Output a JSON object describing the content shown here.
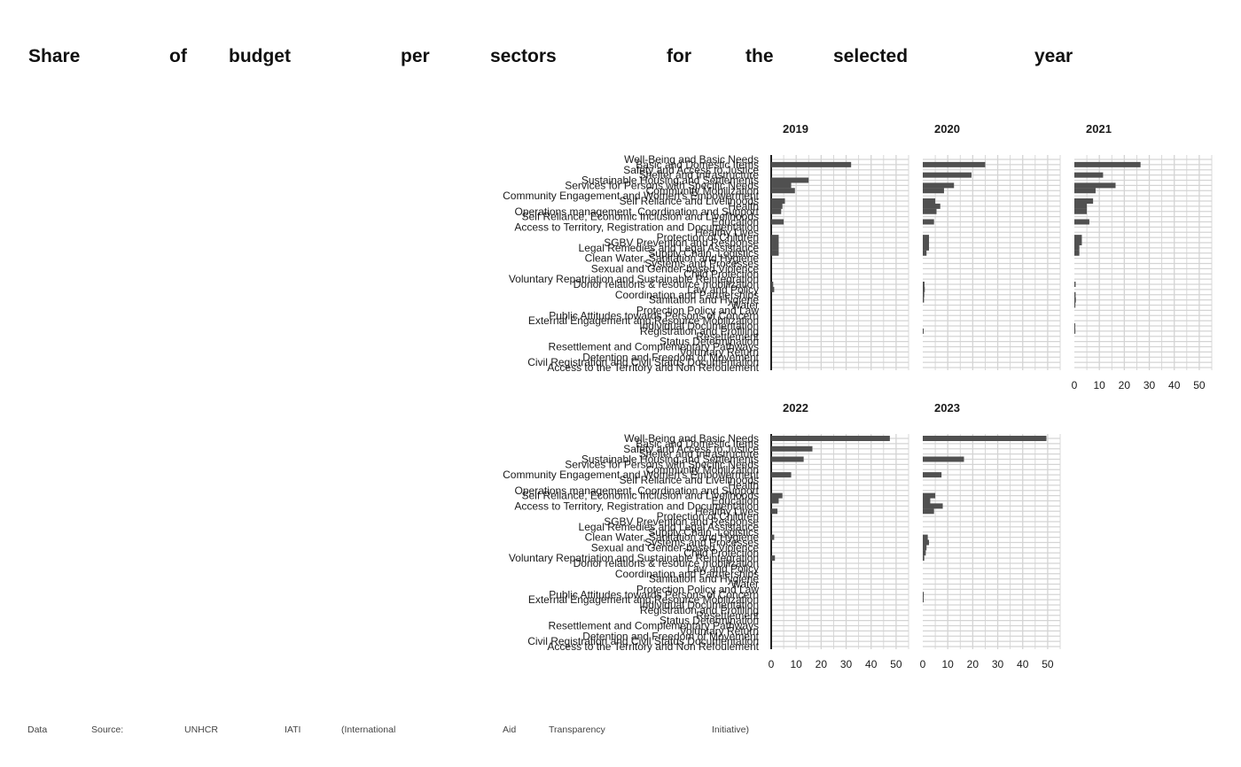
{
  "title": "Share of budget per sectors for the selected year",
  "source": "Data Source: UNHCR IATI (International Aid Transparency Initiative)",
  "colors": {
    "bar": "#505050",
    "grid": "#d4d4d4",
    "axis": "#222222",
    "text": "#1a1a1a"
  },
  "chart_data": {
    "type": "bar",
    "orientation": "horizontal",
    "layout": "facet-wrap",
    "categories": [
      "Well-Being and Basic Needs",
      "Basic and Domestic Items",
      "Safety and Access to Justice",
      "Shelter and Infrastructure",
      "Sustainable Housing and Settlements",
      "Services for Persons with Specific Needs",
      "Community Mobilization",
      "Community Engagement and Women's Empowerment",
      "Self Reliance and Livelihoods",
      "Health",
      "Operations management, Coordination and Support",
      "Self Reliance, Economic Inclusion and Livelihoods",
      "Education",
      "Access to Territory, Registration and Documentation",
      "Healthy Lives",
      "Protection of Children",
      "SGBV Prevention and Response",
      "Legal Remedies and Legal Assistance",
      "Supply Chain, Logistics",
      "Clean Water, Sanitation and Hygiene",
      "Systems and Processes",
      "Sexual and Gender-based Violence",
      "Child Protection",
      "Voluntary Repatriation and Sustainable Reintegration",
      "Donor relations & resource mobilization",
      "Law and Policy",
      "Coordination and Partnerships",
      "Sanitation and Hygiene",
      "Water",
      "Protection Policy and Law",
      "Public Attitudes towards Persons of Concern",
      "External Engagement and Resource Mobilization",
      "Individual Documentation",
      "Registration and Profiling",
      "Resettlement",
      "Status Determination",
      "Resettlement and Complementary Pathways",
      "Voluntary Return",
      "Detention and Freedom of Movement",
      "Civil Registration and Civil Status Documentation",
      "Access to the Territory and Non Refoulement"
    ],
    "series": [
      {
        "name": "2019",
        "values": [
          0,
          32,
          0,
          0,
          15,
          8,
          9.5,
          0,
          5.5,
          4.5,
          4,
          0,
          5,
          0,
          0,
          3,
          3,
          3,
          3,
          0,
          0,
          0,
          0,
          0,
          0.8,
          1.2,
          0,
          0,
          0,
          0,
          0,
          0,
          0,
          0,
          0,
          0,
          0,
          0,
          0,
          0,
          0
        ]
      },
      {
        "name": "2020",
        "values": [
          0,
          25,
          0,
          19.5,
          0,
          12.5,
          8.5,
          0,
          5,
          7,
          5.5,
          0,
          4.5,
          0,
          0,
          2.5,
          2.5,
          2.5,
          1.5,
          0,
          0,
          0,
          0,
          0,
          0.7,
          0.8,
          0.6,
          0.5,
          0,
          0,
          0,
          0,
          0,
          0.3,
          0,
          0,
          0,
          0,
          0,
          0,
          0
        ]
      },
      {
        "name": "2021",
        "values": [
          0,
          26.5,
          0,
          11.5,
          0,
          16.5,
          8.5,
          0,
          7.5,
          5,
          5,
          0,
          6,
          0,
          0,
          3,
          3,
          2,
          2,
          0,
          0,
          0,
          0,
          0,
          0.5,
          0,
          0.5,
          0.6,
          0.4,
          0,
          0,
          0,
          0.3,
          0.4,
          0,
          0,
          0,
          0,
          0,
          0,
          0
        ]
      },
      {
        "name": "2022",
        "values": [
          47.5,
          0,
          16.5,
          0,
          13,
          0,
          0,
          8,
          0,
          0,
          0,
          4.5,
          3,
          0,
          2.5,
          0,
          0,
          0,
          0,
          1.2,
          0,
          0,
          0,
          1.5,
          0,
          0,
          0,
          0,
          0,
          0,
          0,
          0,
          0,
          0,
          0,
          0,
          0,
          0,
          0,
          0,
          0
        ]
      },
      {
        "name": "2023",
        "values": [
          49.5,
          0,
          0,
          0,
          16.5,
          0,
          0,
          7.5,
          0,
          0,
          0,
          5,
          3,
          8,
          4.5,
          0,
          0,
          0,
          0,
          2,
          2.5,
          1.5,
          1.2,
          0.6,
          0,
          0,
          0,
          0,
          0,
          0,
          0.4,
          0.3,
          0,
          0,
          0,
          0,
          0,
          0,
          0,
          0,
          0
        ]
      }
    ],
    "xlim": [
      0,
      55
    ],
    "xticks": [
      0,
      10,
      20,
      30,
      40,
      50
    ],
    "xlabel": "",
    "ylabel": "",
    "grid": true
  }
}
